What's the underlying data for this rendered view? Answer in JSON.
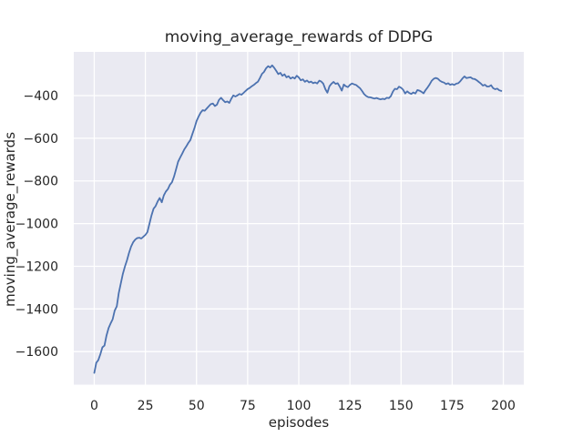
{
  "figure": {
    "title": "moving_average_rewards of DDPG"
  },
  "style": {
    "figure_background": "#ffffff",
    "axes_background": "#eaeaf2",
    "grid_color": "#ffffff",
    "line_color": "#4c72b0",
    "text_color": "#262626"
  },
  "chart_data": {
    "type": "line",
    "title": "moving_average_rewards of DDPG",
    "xlabel": "episodes",
    "ylabel": "moving_average_rewards",
    "xlim": [
      -10,
      210
    ],
    "ylim": [
      -1755,
      -195
    ],
    "xticks": [
      0,
      25,
      50,
      75,
      100,
      125,
      150,
      175,
      200
    ],
    "yticks": [
      -1600,
      -1400,
      -1200,
      -1000,
      -800,
      -600,
      -400
    ],
    "grid": true,
    "legend_position": "none",
    "series": [
      {
        "name": "moving_average_rewards",
        "color": "#4c72b0",
        "x_start": 0,
        "x_step": 1,
        "y": [
          -1700,
          -1652,
          -1640,
          -1612,
          -1580,
          -1572,
          -1525,
          -1490,
          -1468,
          -1448,
          -1408,
          -1388,
          -1325,
          -1281,
          -1235,
          -1202,
          -1172,
          -1138,
          -1108,
          -1088,
          -1075,
          -1068,
          -1066,
          -1070,
          -1062,
          -1053,
          -1040,
          -1000,
          -962,
          -930,
          -918,
          -896,
          -880,
          -900,
          -868,
          -850,
          -838,
          -818,
          -806,
          -780,
          -745,
          -710,
          -690,
          -672,
          -652,
          -638,
          -622,
          -608,
          -580,
          -552,
          -520,
          -498,
          -480,
          -468,
          -471,
          -460,
          -450,
          -440,
          -437,
          -449,
          -442,
          -420,
          -410,
          -421,
          -431,
          -427,
          -434,
          -415,
          -399,
          -404,
          -399,
          -392,
          -396,
          -387,
          -378,
          -369,
          -364,
          -356,
          -350,
          -342,
          -335,
          -318,
          -298,
          -289,
          -272,
          -262,
          -268,
          -258,
          -270,
          -284,
          -299,
          -293,
          -307,
          -300,
          -314,
          -309,
          -320,
          -314,
          -320,
          -307,
          -315,
          -328,
          -324,
          -335,
          -329,
          -338,
          -334,
          -342,
          -338,
          -343,
          -330,
          -334,
          -344,
          -370,
          -386,
          -356,
          -344,
          -336,
          -345,
          -342,
          -357,
          -377,
          -348,
          -356,
          -360,
          -350,
          -343,
          -347,
          -350,
          -358,
          -366,
          -379,
          -394,
          -402,
          -407,
          -408,
          -411,
          -414,
          -411,
          -415,
          -418,
          -415,
          -417,
          -410,
          -412,
          -403,
          -381,
          -368,
          -370,
          -358,
          -363,
          -372,
          -390,
          -380,
          -388,
          -392,
          -385,
          -390,
          -374,
          -377,
          -382,
          -389,
          -374,
          -361,
          -347,
          -330,
          -321,
          -317,
          -321,
          -330,
          -336,
          -339,
          -346,
          -342,
          -349,
          -346,
          -350,
          -344,
          -342,
          -332,
          -320,
          -310,
          -318,
          -316,
          -314,
          -321,
          -322,
          -328,
          -336,
          -343,
          -353,
          -349,
          -357,
          -357,
          -351,
          -365,
          -370,
          -367,
          -375,
          -378
        ]
      }
    ]
  }
}
